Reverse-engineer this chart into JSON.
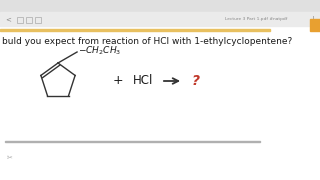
{
  "bg_color": "#f8f8f8",
  "white_content_bg": "#ffffff",
  "top_statusbar_color": "#e0e0e0",
  "toolbar_color": "#ebebeb",
  "orange_line_color": "#e8c060",
  "bottom_line_color": "#b0b0b0",
  "question_text": "buld you expect from reaction of HCl with 1-ethylcyclopentene?",
  "question_color": "#1a1a1a",
  "question_fontsize": 6.5,
  "plus_text": "+",
  "hcl_text": "HCl",
  "question_mark": "?",
  "question_mark_color": "#c0392b",
  "toolbar_label": "Lecture 3 Part 1.pdf #natpdf",
  "icon_color": "#888888"
}
